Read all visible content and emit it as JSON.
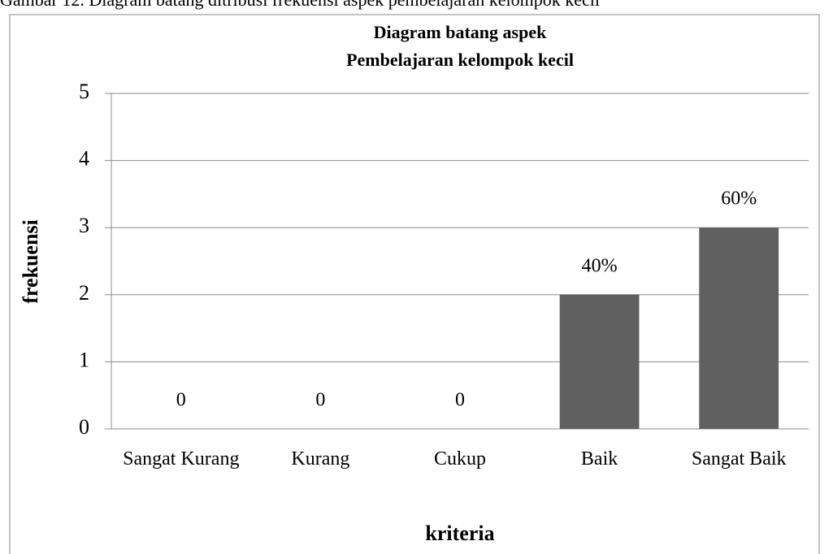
{
  "caption": "Gambar 12. Diagram batang ditribusi frekuensi aspek pembelajaran kelompok kecil",
  "chart_data": {
    "type": "bar",
    "title": [
      "Diagram batang aspek",
      "Pembelajaran kelompok kecil"
    ],
    "x_label": "kriteria",
    "y_label": "frekuensi",
    "categories": [
      "Sangat Kurang",
      "Kurang",
      "Cukup",
      "Baik",
      "Sangat Baik"
    ],
    "values": [
      0,
      0,
      0,
      2,
      3
    ],
    "bar_labels": [
      "0",
      "0",
      "0",
      "40%",
      "60%"
    ],
    "color": "#606060",
    "ylim": [
      0,
      5
    ],
    "yticks": [
      0,
      1,
      2,
      3,
      4,
      5
    ],
    "grid": true
  }
}
